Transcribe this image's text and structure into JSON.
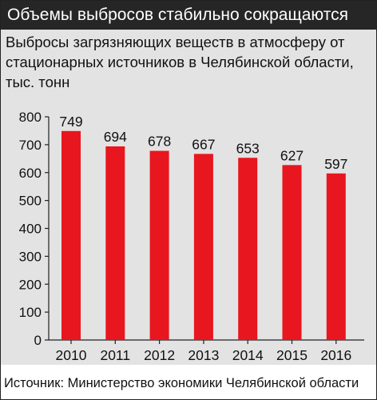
{
  "header": {
    "title": "Объемы выбросов стабильно сокращаются"
  },
  "subtitle": {
    "line1": "Выбросы загрязняющих веществ в атмосферу от",
    "line2": "стационарных источников в Челябинской области,",
    "line3": "тыс. тонн"
  },
  "footer": {
    "source": "Источник: Министерство экономики Челябинской области"
  },
  "colors": {
    "bar": "#e8161e",
    "header_bg": "#262626",
    "panel_bg": "#e3e3e3"
  },
  "chart_data": {
    "type": "bar",
    "categories": [
      "2010",
      "2011",
      "2012",
      "2013",
      "2014",
      "2015",
      "2016"
    ],
    "values": [
      749,
      694,
      678,
      667,
      653,
      627,
      597
    ],
    "ylim": [
      0,
      800
    ],
    "yticks": [
      0,
      100,
      200,
      300,
      400,
      500,
      600,
      700,
      800
    ],
    "grid": false,
    "data_labels": true
  }
}
